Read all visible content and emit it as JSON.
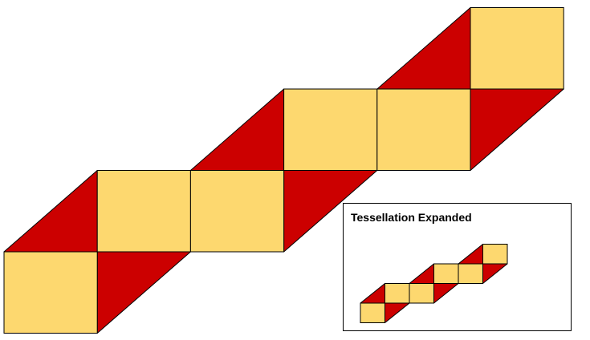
{
  "inset": {
    "title": "Tessellation Expanded"
  },
  "colors": {
    "square": "#FDD86F",
    "triangle": "#CC0000",
    "stroke": "#000000",
    "frame": "#000000",
    "background": "#FFFFFF"
  },
  "pattern": {
    "square_count": 6,
    "rise_per_step": 0.875,
    "triangle_pairs_per_square": 1
  }
}
